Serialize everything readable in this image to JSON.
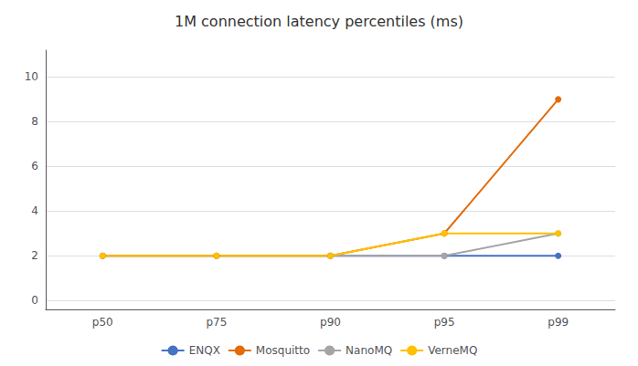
{
  "chart_data": {
    "type": "line",
    "title": "1M connection latency percentiles (ms)",
    "categories": [
      "p50",
      "p75",
      "p90",
      "p95",
      "p99"
    ],
    "series": [
      {
        "name": "ENQX",
        "color": "#4472C4",
        "marker": "circle",
        "values": [
          2,
          2,
          2,
          2,
          2
        ]
      },
      {
        "name": "Mosquitto",
        "color": "#E36C09",
        "marker": "circle",
        "values": [
          2,
          2,
          2,
          3,
          9
        ]
      },
      {
        "name": "NanoMQ",
        "color": "#A5A5A5",
        "marker": "circle",
        "values": [
          null,
          null,
          2,
          2,
          3
        ]
      },
      {
        "name": "VerneMQ",
        "color": "#FFC000",
        "marker": "circle",
        "values": [
          2,
          2,
          2,
          3,
          3
        ]
      }
    ],
    "ylim": [
      -0.4,
      11.2
    ],
    "yticks": [
      0,
      2,
      4,
      6,
      8,
      10
    ],
    "grid": true,
    "legend": "bottom"
  }
}
